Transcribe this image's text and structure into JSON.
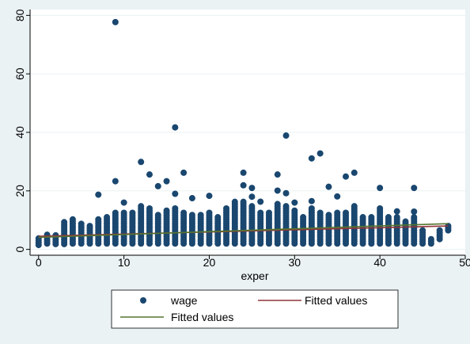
{
  "chart_data": {
    "type": "scatter",
    "xlabel": "exper",
    "ylabel": "",
    "xlim": [
      -1,
      50
    ],
    "ylim": [
      -2,
      82
    ],
    "xticks": [
      0,
      10,
      20,
      30,
      40,
      50
    ],
    "yticks": [
      0,
      20,
      40,
      60,
      80
    ],
    "grid": true,
    "legend_position": "bottom",
    "series": [
      {
        "name": "wage",
        "type": "scatter",
        "color": "#1a476f",
        "outliers": [
          [
            9,
            77.7
          ],
          [
            16,
            41.7
          ],
          [
            29,
            38.9
          ],
          [
            33,
            32.8
          ],
          [
            32,
            31.1
          ],
          [
            12,
            29.9
          ],
          [
            17,
            26.2
          ],
          [
            24,
            26.2
          ],
          [
            28,
            25.6
          ],
          [
            37,
            26.2
          ],
          [
            13,
            25.6
          ],
          [
            36,
            24.9
          ],
          [
            9,
            23.3
          ],
          [
            15,
            23.3
          ],
          [
            14,
            21.6
          ],
          [
            24,
            21.9
          ],
          [
            25,
            21.0
          ],
          [
            34,
            21.4
          ],
          [
            40,
            21.0
          ],
          [
            44,
            21.0
          ],
          [
            28,
            20.1
          ],
          [
            7,
            18.7
          ],
          [
            20,
            18.3
          ],
          [
            25,
            18.0
          ],
          [
            29,
            19.2
          ],
          [
            10,
            16.0
          ],
          [
            16,
            19.0
          ],
          [
            18,
            17.5
          ],
          [
            26,
            16.3
          ],
          [
            30,
            16.0
          ],
          [
            32,
            16.5
          ],
          [
            35,
            18.1
          ],
          [
            42,
            13.0
          ],
          [
            44,
            12.9
          ]
        ],
        "columns": [
          [
            0,
            1.5,
            3.8
          ],
          [
            1,
            2.0,
            5.5
          ],
          [
            2,
            1.8,
            5.0
          ],
          [
            3,
            1.8,
            9.5
          ],
          [
            4,
            2.0,
            10.5
          ],
          [
            5,
            2.0,
            9.0
          ],
          [
            6,
            2.0,
            8.0
          ],
          [
            7,
            2.0,
            10.5
          ],
          [
            8,
            2.0,
            11.0
          ],
          [
            9,
            2.0,
            12.5
          ],
          [
            10,
            2.0,
            13.0
          ],
          [
            11,
            2.0,
            12.5
          ],
          [
            12,
            2.0,
            15.0
          ],
          [
            13,
            2.0,
            14.0
          ],
          [
            14,
            2.0,
            12.0
          ],
          [
            15,
            2.0,
            13.5
          ],
          [
            16,
            2.0,
            14.0
          ],
          [
            17,
            2.0,
            12.5
          ],
          [
            18,
            2.0,
            12.0
          ],
          [
            19,
            2.0,
            12.0
          ],
          [
            20,
            2.0,
            13.0
          ],
          [
            21,
            2.0,
            11.0
          ],
          [
            22,
            2.0,
            14.0
          ],
          [
            23,
            2.0,
            16.5
          ],
          [
            24,
            2.0,
            16.5
          ],
          [
            25,
            2.0,
            15.0
          ],
          [
            26,
            2.0,
            12.5
          ],
          [
            27,
            2.0,
            13.0
          ],
          [
            28,
            2.0,
            16.0
          ],
          [
            29,
            2.0,
            15.0
          ],
          [
            30,
            2.0,
            13.5
          ],
          [
            31,
            2.0,
            11.5
          ],
          [
            32,
            2.0,
            14.0
          ],
          [
            33,
            2.0,
            13.0
          ],
          [
            34,
            2.0,
            12.0
          ],
          [
            35,
            2.0,
            12.5
          ],
          [
            36,
            2.0,
            13.0
          ],
          [
            37,
            2.0,
            15.0
          ],
          [
            38,
            2.0,
            11.5
          ],
          [
            39,
            2.0,
            11.0
          ],
          [
            40,
            2.0,
            14.5
          ],
          [
            41,
            2.0,
            11.0
          ],
          [
            42,
            2.0,
            11.5
          ],
          [
            43,
            2.0,
            10.0
          ],
          [
            44,
            2.0,
            11.0
          ],
          [
            45,
            2.0,
            7.0
          ],
          [
            46,
            2.0,
            3.5
          ],
          [
            47,
            3.5,
            6.5
          ],
          [
            48,
            6.5,
            8.5
          ]
        ]
      },
      {
        "name": "Fitted values",
        "type": "line",
        "color": "#90353b",
        "x": [
          0,
          48
        ],
        "y": [
          4.5,
          8.0
        ]
      },
      {
        "name": "Fitted values",
        "type": "line",
        "color": "#55752f",
        "x": [
          0,
          48
        ],
        "y": [
          4.1,
          8.8
        ]
      }
    ]
  }
}
